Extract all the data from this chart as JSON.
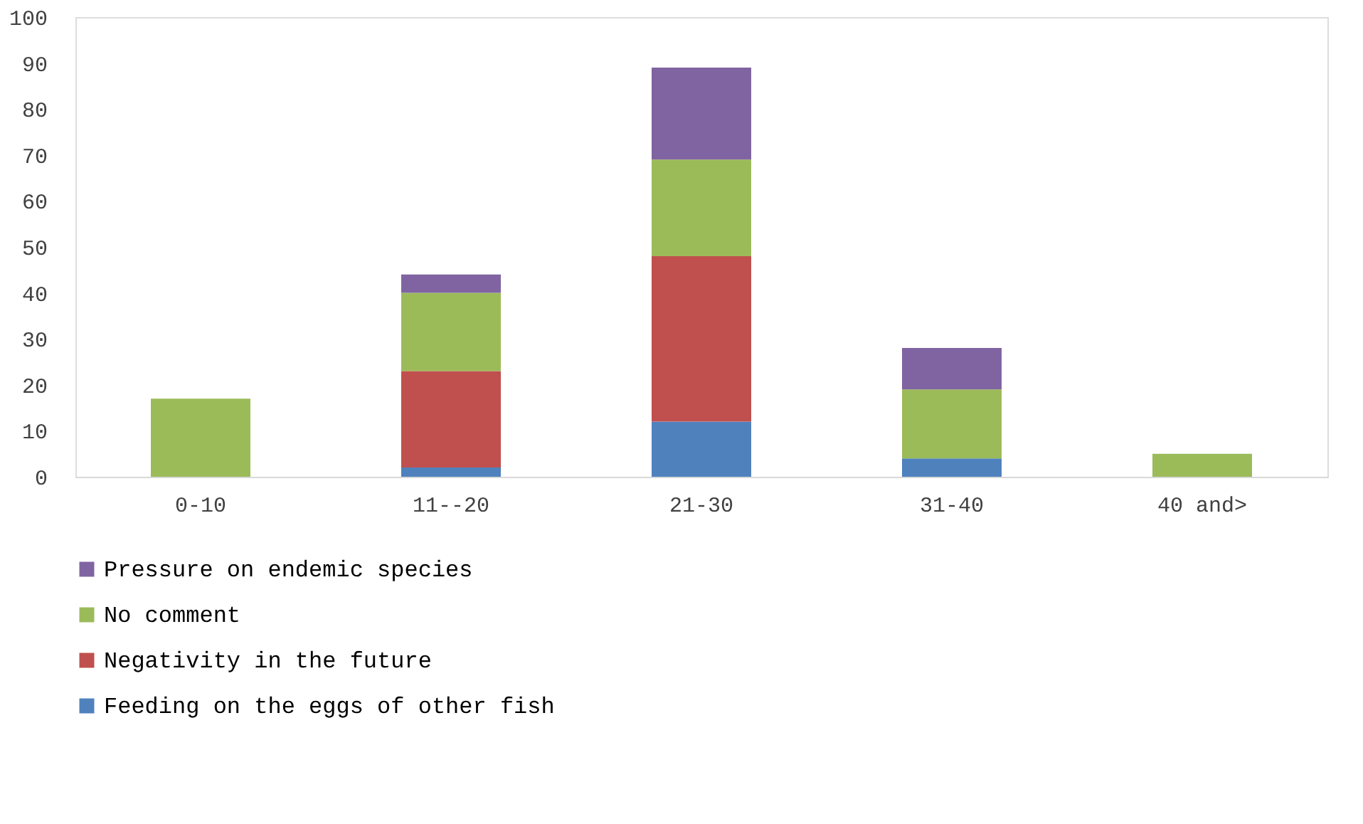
{
  "chart_data": {
    "type": "bar",
    "stacked": true,
    "categories": [
      "0-10",
      "11--20",
      "21-30",
      "31-40",
      "40 and>"
    ],
    "series": [
      {
        "name": "Feeding on the eggs of other fish",
        "color": "#4f81bd",
        "values": [
          null,
          2,
          12,
          4,
          null
        ]
      },
      {
        "name": "Negativity in the future",
        "color": "#c0504d",
        "values": [
          null,
          21,
          36,
          null,
          null
        ]
      },
      {
        "name": "No comment",
        "color": "#9bbb59",
        "values": [
          17,
          17,
          21,
          15,
          5
        ]
      },
      {
        "name": "Pressure on endemic species",
        "color": "#8064a2",
        "values": [
          null,
          4,
          20,
          9,
          null
        ]
      }
    ],
    "ylim": [
      0,
      100
    ],
    "yticks": [
      0,
      10,
      20,
      30,
      40,
      50,
      60,
      70,
      80,
      90,
      100
    ],
    "grid": false,
    "legend": "bottom"
  }
}
